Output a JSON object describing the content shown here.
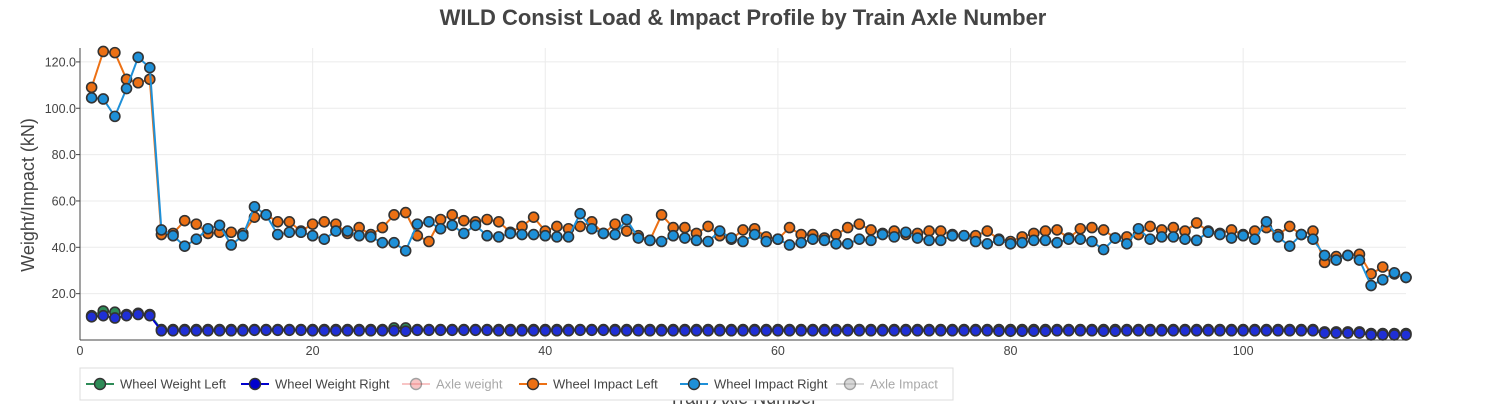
{
  "chart_data": {
    "type": "line",
    "title": "WILD Consist Load & Impact Profile by Train Axle Number",
    "xlabel": "Train Axle Number",
    "ylabel": "Weight/Impact (kN)",
    "xlim": [
      0,
      114
    ],
    "ylim": [
      0,
      126
    ],
    "xticks": [
      0,
      20,
      40,
      60,
      80,
      100
    ],
    "xtick_labels": [
      "0",
      "20",
      "40",
      "60",
      "80",
      "100"
    ],
    "yticks": [
      20,
      40,
      60,
      80,
      100,
      120
    ],
    "ytick_labels": [
      "20.0",
      "40.0",
      "60.0",
      "80.0",
      "100.0",
      "120.0"
    ],
    "grid": true,
    "legend_position": "bottom-left",
    "legend": [
      {
        "name": "Wheel Weight Left",
        "color": "#2e8b57",
        "visible": true
      },
      {
        "name": "Wheel Weight Right",
        "color": "#0000cd",
        "visible": true
      },
      {
        "name": "Axle weight",
        "color": "#f08080",
        "visible": false
      },
      {
        "name": "Wheel Impact Left",
        "color": "#ec7014",
        "visible": true
      },
      {
        "name": "Wheel Impact Right",
        "color": "#1e90d8",
        "visible": true
      },
      {
        "name": "Axle Impact",
        "color": "#a9a9a9",
        "visible": false
      }
    ],
    "x": [
      1,
      2,
      3,
      4,
      5,
      6,
      7,
      8,
      9,
      10,
      11,
      12,
      13,
      14,
      15,
      16,
      17,
      18,
      19,
      20,
      21,
      22,
      23,
      24,
      25,
      26,
      27,
      28,
      29,
      30,
      31,
      32,
      33,
      34,
      35,
      36,
      37,
      38,
      39,
      40,
      41,
      42,
      43,
      44,
      45,
      46,
      47,
      48,
      49,
      50,
      51,
      52,
      53,
      54,
      55,
      56,
      57,
      58,
      59,
      60,
      61,
      62,
      63,
      64,
      65,
      66,
      67,
      68,
      69,
      70,
      71,
      72,
      73,
      74,
      75,
      76,
      77,
      78,
      79,
      80,
      81,
      82,
      83,
      84,
      85,
      86,
      87,
      88,
      89,
      90,
      91,
      92,
      93,
      94,
      95,
      96,
      97,
      98,
      99,
      100,
      101,
      102,
      103,
      104,
      105,
      106,
      107,
      108,
      109,
      110,
      111,
      112,
      113,
      114
    ],
    "series": [
      {
        "name": "Wheel Weight Left",
        "color": "#2e8b57",
        "marker_fill": "#2e8b57",
        "values": [
          10.5,
          12.5,
          12.0,
          11.0,
          11.5,
          11.0,
          4.5,
          4.5,
          4.5,
          4.5,
          4.5,
          4.5,
          4.5,
          4.5,
          4.5,
          4.5,
          4.5,
          4.5,
          4.5,
          4.5,
          4.5,
          4.5,
          4.5,
          4.5,
          4.5,
          4.5,
          5.2,
          5.2,
          4.5,
          4.5,
          4.5,
          4.5,
          4.5,
          4.5,
          4.5,
          4.5,
          4.5,
          4.5,
          4.5,
          4.5,
          4.5,
          4.5,
          4.5,
          4.5,
          4.5,
          4.5,
          4.5,
          4.5,
          4.5,
          4.5,
          4.5,
          4.5,
          4.5,
          4.5,
          4.5,
          4.5,
          4.5,
          4.5,
          4.5,
          4.5,
          4.5,
          4.5,
          4.5,
          4.5,
          4.5,
          4.5,
          4.5,
          4.5,
          4.5,
          4.5,
          4.5,
          4.5,
          4.5,
          4.5,
          4.5,
          4.5,
          4.5,
          4.5,
          4.5,
          4.5,
          4.5,
          4.5,
          4.5,
          4.5,
          4.5,
          4.5,
          4.5,
          4.5,
          4.5,
          4.5,
          4.5,
          4.5,
          4.5,
          4.5,
          4.5,
          4.5,
          4.5,
          4.5,
          4.5,
          4.5,
          4.5,
          4.5,
          4.5,
          4.5,
          4.5,
          4.5,
          3.5,
          3.5,
          3.5,
          3.5,
          2.8,
          2.8,
          2.8,
          2.8
        ]
      },
      {
        "name": "Wheel Weight Right",
        "color": "#0000cd",
        "marker_fill": "#1f2fd6",
        "values": [
          10.0,
          10.5,
          9.5,
          10.5,
          11.0,
          10.5,
          4.0,
          4.0,
          4.0,
          4.0,
          4.0,
          4.0,
          4.0,
          4.0,
          4.2,
          4.2,
          4.2,
          4.2,
          4.2,
          4.0,
          4.0,
          4.0,
          4.0,
          4.0,
          4.0,
          4.0,
          4.0,
          3.8,
          4.2,
          4.2,
          4.2,
          4.2,
          4.2,
          4.2,
          4.2,
          4.0,
          4.0,
          4.0,
          4.0,
          4.0,
          4.0,
          4.0,
          4.2,
          4.2,
          4.2,
          4.0,
          4.0,
          4.0,
          4.0,
          4.0,
          4.0,
          4.0,
          4.0,
          4.0,
          4.0,
          4.0,
          4.0,
          4.0,
          4.0,
          4.0,
          4.0,
          4.0,
          4.0,
          4.0,
          4.0,
          4.0,
          4.0,
          4.0,
          4.0,
          4.0,
          4.0,
          4.0,
          4.0,
          4.0,
          4.0,
          4.0,
          4.0,
          4.0,
          3.8,
          3.8,
          3.8,
          3.8,
          3.8,
          4.0,
          4.0,
          4.0,
          4.0,
          3.8,
          3.8,
          4.0,
          4.0,
          4.0,
          4.0,
          4.0,
          4.0,
          4.0,
          4.0,
          4.0,
          4.0,
          4.0,
          4.0,
          4.0,
          4.0,
          4.0,
          4.0,
          4.0,
          3.0,
          3.0,
          3.0,
          3.0,
          2.2,
          2.2,
          2.2,
          2.2
        ]
      },
      {
        "name": "Wheel Impact Left",
        "color": "#ec7014",
        "marker_fill": "#ec7014",
        "values": [
          109,
          124.5,
          124,
          112.5,
          111,
          112.5,
          45.5,
          46,
          51.5,
          50,
          46,
          46.5,
          46.5,
          46,
          53,
          54,
          51,
          51,
          47,
          50,
          51,
          50,
          46,
          48.5,
          45.5,
          48.5,
          54,
          55,
          45,
          42.5,
          52,
          54,
          51.5,
          51,
          52,
          51,
          46.5,
          49,
          53,
          47,
          49,
          48,
          49,
          51,
          46,
          50,
          47,
          45,
          43,
          54,
          48.5,
          48.5,
          46,
          49,
          45,
          43.5,
          47.5,
          48,
          44.5,
          43.5,
          48.5,
          45.5,
          45.5,
          44,
          45.5,
          48.5,
          50,
          47.5,
          46,
          47,
          45.5,
          46,
          47,
          47,
          45.5,
          45,
          45,
          47,
          43.5,
          42.5,
          44.5,
          46,
          47,
          47.5,
          44,
          48,
          48.5,
          47.5,
          44,
          44.5,
          45.5,
          49,
          47.5,
          48.5,
          47,
          50.5,
          47,
          46,
          47.5,
          45.5,
          47,
          48.5,
          45.5,
          49,
          45.5,
          47,
          33.5,
          36,
          36.5,
          37,
          28.5,
          31.5,
          28.5,
          27
        ]
      },
      {
        "name": "Wheel Impact Right",
        "color": "#1e90d8",
        "marker_fill": "#1e90d8",
        "values": [
          104.5,
          104,
          96.5,
          108.5,
          122,
          117.5,
          47.5,
          45,
          40.5,
          43.5,
          48,
          49.5,
          41,
          45,
          57.5,
          54,
          45.5,
          46.5,
          46.5,
          45,
          43.5,
          47,
          47,
          45,
          44.5,
          42,
          42,
          38.5,
          50,
          51,
          48,
          49.5,
          46,
          49.5,
          45,
          44.5,
          46,
          45.5,
          45.5,
          45,
          44.5,
          44.5,
          54.5,
          48,
          46,
          45.5,
          52,
          44,
          43,
          42.5,
          45,
          44,
          43,
          42.5,
          47,
          44,
          42.5,
          45.5,
          42.5,
          43.5,
          41,
          42,
          43.5,
          43,
          41.5,
          41.5,
          43.5,
          43,
          45.5,
          44.5,
          46.5,
          44,
          43,
          43,
          45,
          45,
          42.5,
          41.5,
          43,
          41.5,
          42,
          43,
          43,
          42,
          43.5,
          43.5,
          42.5,
          39,
          44,
          41.5,
          48,
          43.5,
          44.5,
          44.5,
          43.5,
          43,
          46.5,
          45.5,
          44,
          45,
          43.5,
          51,
          44.5,
          40.5,
          45.5,
          43.5,
          36.5,
          34.5,
          36.5,
          34.5,
          23.5,
          26,
          29,
          27
        ]
      }
    ]
  }
}
